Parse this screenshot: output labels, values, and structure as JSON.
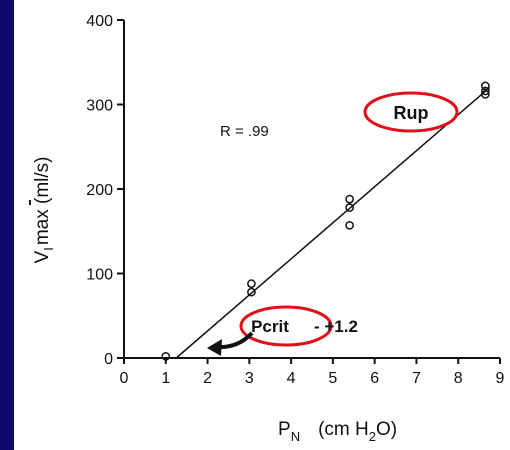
{
  "chart_data": {
    "type": "scatter",
    "xlim": [
      0,
      9
    ],
    "ylim": [
      0,
      400
    ],
    "x_ticks": [
      "0",
      "1",
      "2",
      "3",
      "4",
      "5",
      "6",
      "7",
      "8",
      "9"
    ],
    "y_ticks": [
      "0",
      "100",
      "200",
      "300",
      "400"
    ],
    "xlabel": {
      "main": "P",
      "sub": "N",
      "units_pre": "(cm H",
      "units_sub": "2",
      "units_post": "O)"
    },
    "ylabel": {
      "main": "V",
      "sub": "I",
      "rest": "max (ml/s)"
    },
    "points": [
      {
        "x": 1.0,
        "y": 2
      },
      {
        "x": 3.05,
        "y": 88
      },
      {
        "x": 3.05,
        "y": 78
      },
      {
        "x": 5.4,
        "y": 188
      },
      {
        "x": 5.4,
        "y": 178
      },
      {
        "x": 5.4,
        "y": 157
      },
      {
        "x": 8.65,
        "y": 322
      },
      {
        "x": 8.65,
        "y": 316
      },
      {
        "x": 8.65,
        "y": 312
      }
    ],
    "fit_line": {
      "x1": 1.25,
      "y1": 0,
      "x2": 8.75,
      "y2": 320
    },
    "annotations": {
      "r_value": "R = .99",
      "rup_label": "Rup",
      "pcrit_label": "Pcrit",
      "pcrit_value": "- +1.2"
    },
    "colors": {
      "highlight": "#e0101a",
      "background": "#0b0b6e",
      "ink": "#111111"
    }
  }
}
